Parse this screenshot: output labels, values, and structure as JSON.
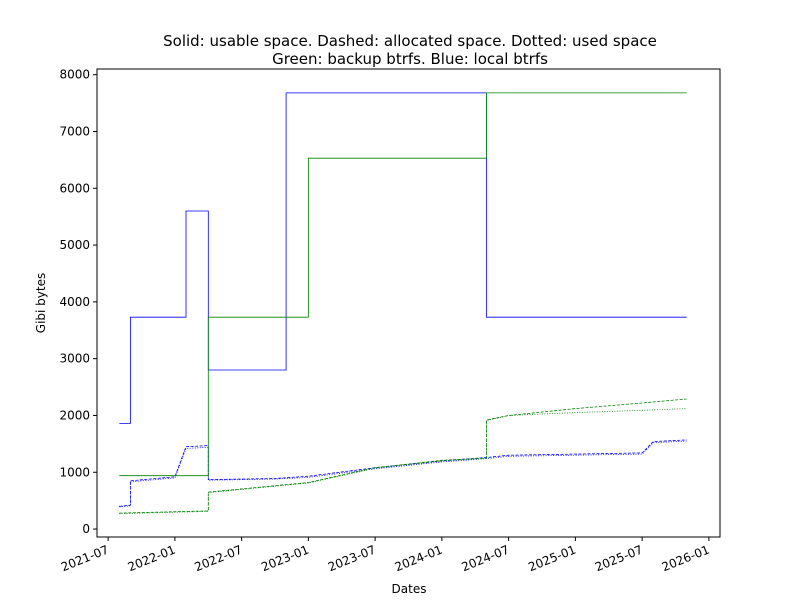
{
  "chart_data": {
    "type": "line",
    "title": "Solid: usable space.  Dashed: allocated space.  Dotted: used space",
    "subtitle": "Green: backup btrfs.  Blue: local btrfs",
    "x_label": "Dates",
    "y_label": "Gibi bytes",
    "xlim": [
      "2021-06",
      "2026-02"
    ],
    "xticks": [
      "2021-07",
      "2022-01",
      "2022-07",
      "2023-01",
      "2023-07",
      "2024-01",
      "2024-07",
      "2025-01",
      "2025-07",
      "2026-01"
    ],
    "ylim": [
      -140,
      8100
    ],
    "yticks": [
      0,
      1000,
      2000,
      3000,
      4000,
      5000,
      6000,
      7000,
      8000
    ],
    "series": [
      {
        "color": "#0000ff",
        "style": "solid",
        "x": [
          "2021-08",
          "2021-09",
          "2021-09",
          "2022-02",
          "2022-02",
          "2022-04",
          "2022-04",
          "2022-11",
          "2022-11",
          "2024-05",
          "2024-05",
          "2025-11"
        ],
        "values": [
          1860,
          1860,
          3730,
          3730,
          5600,
          5600,
          2800,
          2800,
          7680,
          7680,
          3730,
          3730
        ]
      },
      {
        "color": "#0000ff",
        "style": "dashed",
        "x": [
          "2021-08",
          "2021-09",
          "2021-09",
          "2022-01",
          "2022-02",
          "2022-04",
          "2022-04",
          "2022-10",
          "2023-01",
          "2023-07",
          "2024-01",
          "2024-05",
          "2024-07",
          "2025-01",
          "2025-07",
          "2025-08",
          "2025-11"
        ],
        "values": [
          400,
          420,
          850,
          920,
          1450,
          1470,
          870,
          890,
          930,
          1080,
          1200,
          1260,
          1300,
          1320,
          1340,
          1540,
          1570
        ]
      },
      {
        "color": "#0000ff",
        "style": "dotted",
        "x": [
          "2021-08",
          "2021-09",
          "2021-09",
          "2022-01",
          "2022-02",
          "2022-04",
          "2022-04",
          "2022-10",
          "2023-01",
          "2023-07",
          "2024-01",
          "2024-05",
          "2024-07",
          "2025-01",
          "2025-07",
          "2025-08",
          "2025-11"
        ],
        "values": [
          390,
          410,
          830,
          900,
          1420,
          1440,
          860,
          880,
          910,
          1060,
          1180,
          1240,
          1280,
          1300,
          1320,
          1520,
          1550
        ]
      },
      {
        "color": "#008000",
        "style": "solid",
        "x": [
          "2021-08",
          "2022-04",
          "2022-04",
          "2023-01",
          "2023-01",
          "2024-05",
          "2024-05",
          "2025-11"
        ],
        "values": [
          940,
          940,
          3730,
          3730,
          6530,
          6530,
          7680,
          7680
        ]
      },
      {
        "color": "#008000",
        "style": "dashed",
        "x": [
          "2021-08",
          "2022-04",
          "2022-04",
          "2023-01",
          "2023-07",
          "2024-01",
          "2024-05",
          "2024-05",
          "2024-07",
          "2025-01",
          "2025-07",
          "2025-11"
        ],
        "values": [
          280,
          320,
          650,
          820,
          1080,
          1210,
          1250,
          1920,
          2000,
          2120,
          2220,
          2290
        ]
      },
      {
        "color": "#008000",
        "style": "dotted",
        "x": [
          "2021-08",
          "2022-04",
          "2022-04",
          "2023-01",
          "2023-07",
          "2024-01",
          "2024-05",
          "2024-05",
          "2024-07",
          "2025-01",
          "2025-07",
          "2025-11"
        ],
        "values": [
          270,
          310,
          640,
          810,
          1070,
          1200,
          1240,
          1910,
          2000,
          2050,
          2090,
          2120
        ]
      }
    ]
  }
}
